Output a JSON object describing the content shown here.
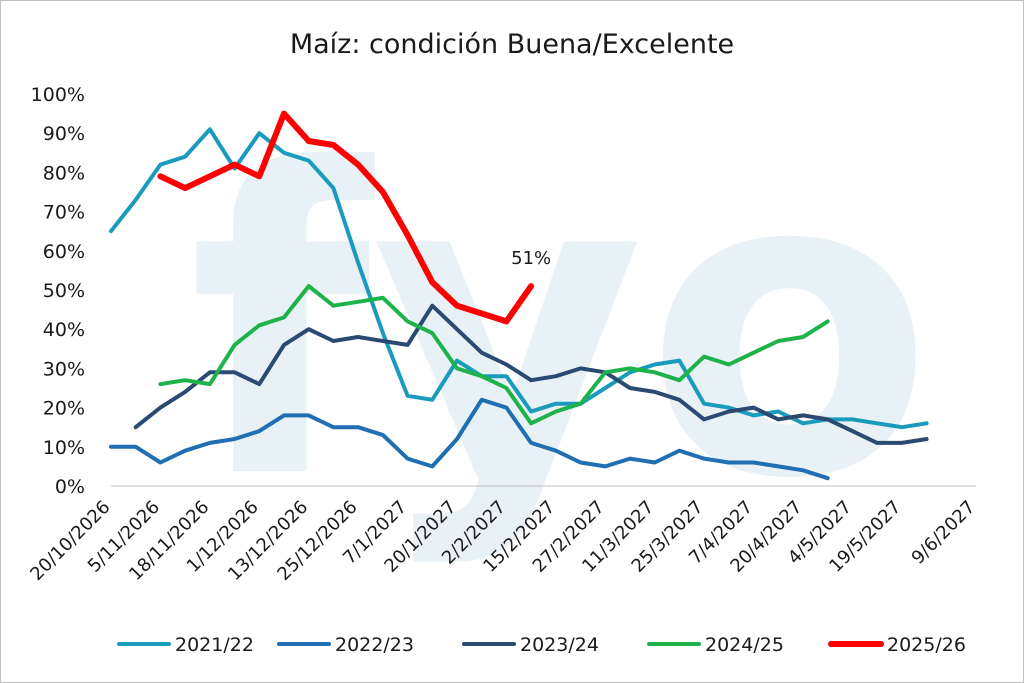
{
  "chart_data": {
    "type": "line",
    "title": "Maíz: condición Buena/Excelente",
    "watermark": "fyo",
    "x": [
      "20/10/2026",
      "27/10/2026",
      "5/11/2026",
      "12/11/2026",
      "18/11/2026",
      "25/11/2026",
      "1/12/2026",
      "7/12/2026",
      "13/12/2026",
      "19/12/2026",
      "25/12/2026",
      "1/1/2027",
      "7/1/2027",
      "13/1/2027",
      "20/1/2027",
      "26/1/2027",
      "2/2/2027",
      "8/2/2027",
      "15/2/2027",
      "21/2/2027",
      "27/2/2027",
      "5/3/2027",
      "11/3/2027",
      "18/3/2027",
      "25/3/2027",
      "1/4/2027",
      "7/4/2027",
      "13/4/2027",
      "20/4/2027",
      "27/4/2027",
      "4/5/2027",
      "11/5/2027",
      "19/5/2027",
      "26/5/2027",
      "2/6/2027",
      "9/6/2027"
    ],
    "x_tick_labels": [
      "20/10/2026",
      "5/11/2026",
      "18/11/2026",
      "1/12/2026",
      "13/12/2026",
      "25/12/2026",
      "7/1/2027",
      "20/1/2027",
      "2/2/2027",
      "15/2/2027",
      "27/2/2027",
      "11/3/2027",
      "25/3/2027",
      "7/4/2027",
      "20/4/2027",
      "4/5/2027",
      "19/5/2027",
      "9/6/2027"
    ],
    "y_tick_labels": [
      "0%",
      "10%",
      "20%",
      "30%",
      "40%",
      "50%",
      "60%",
      "70%",
      "80%",
      "90%",
      "100%"
    ],
    "ylim": [
      0,
      100
    ],
    "xlabel": "",
    "ylabel": "",
    "grid": false,
    "legend_position": "bottom",
    "series": [
      {
        "name": "2021/22",
        "color": "#1a9bbd",
        "values": [
          65,
          73,
          82,
          84,
          91,
          81,
          90,
          85,
          83,
          76,
          57,
          39,
          23,
          22,
          32,
          28,
          28,
          19,
          21,
          21,
          25,
          29,
          31,
          32,
          21,
          20,
          18,
          19,
          16,
          17,
          17,
          16,
          15,
          16,
          null,
          null
        ]
      },
      {
        "name": "2022/23",
        "color": "#1f6fb2",
        "values": [
          10,
          10,
          6,
          9,
          11,
          12,
          14,
          18,
          18,
          15,
          15,
          13,
          7,
          5,
          12,
          22,
          20,
          11,
          9,
          6,
          5,
          7,
          6,
          9,
          7,
          6,
          6,
          5,
          4,
          2,
          null,
          null,
          null,
          null,
          null,
          null
        ]
      },
      {
        "name": "2023/24",
        "color": "#2b4a72",
        "values": [
          null,
          15,
          20,
          24,
          29,
          29,
          26,
          36,
          40,
          37,
          38,
          37,
          36,
          46,
          40,
          34,
          31,
          27,
          28,
          30,
          29,
          25,
          24,
          22,
          17,
          19,
          20,
          17,
          18,
          17,
          14,
          11,
          11,
          12,
          null,
          null
        ]
      },
      {
        "name": "2024/25",
        "color": "#1db34a",
        "values": [
          null,
          null,
          26,
          27,
          26,
          36,
          41,
          43,
          51,
          46,
          47,
          48,
          42,
          39,
          30,
          28,
          25,
          16,
          19,
          21,
          29,
          30,
          29,
          27,
          33,
          31,
          34,
          37,
          38,
          42,
          null,
          null,
          null,
          null,
          null,
          null
        ]
      },
      {
        "name": "2025/26",
        "color": "#ff0000",
        "values": [
          null,
          null,
          79,
          76,
          79,
          82,
          79,
          95,
          88,
          87,
          82,
          75,
          64,
          52,
          46,
          44,
          42,
          51,
          null,
          null,
          null,
          null,
          null,
          null,
          null,
          null,
          null,
          null,
          null,
          null,
          null,
          null,
          null,
          null,
          null,
          null
        ]
      }
    ],
    "annotations": [
      {
        "text": "51%",
        "series": "2025/26",
        "x": "21/2/2027",
        "y": 51
      }
    ]
  }
}
